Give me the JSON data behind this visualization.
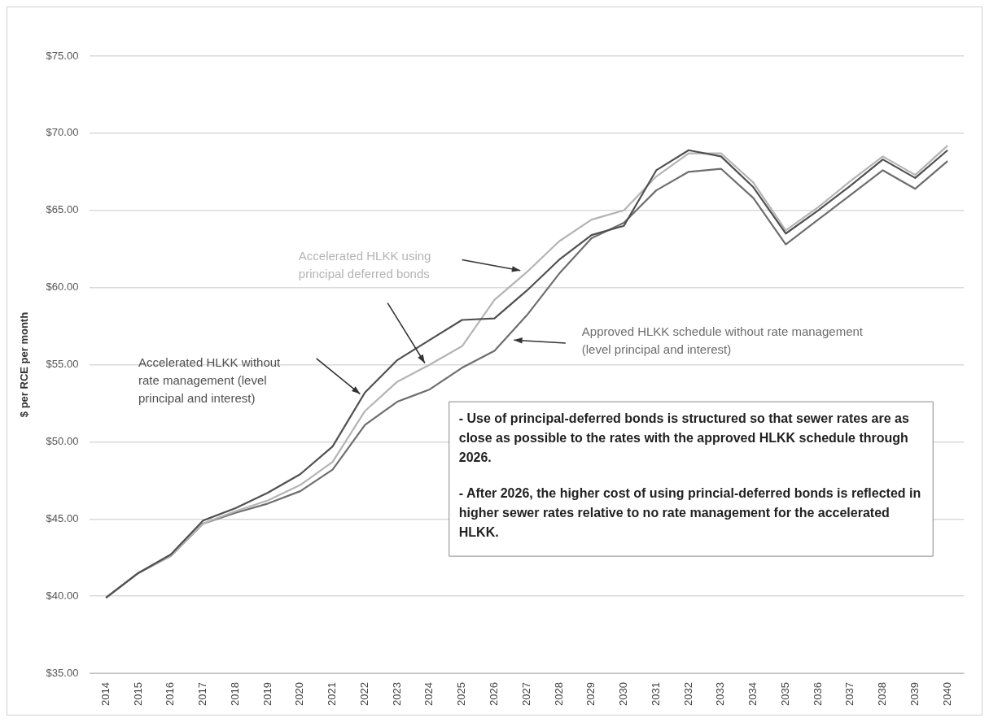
{
  "chart_data": {
    "type": "line",
    "ylabel": "$ per RCE per month",
    "categories": [
      "2014",
      "2015",
      "2016",
      "2017",
      "2018",
      "2019",
      "2020",
      "2021",
      "2022",
      "2023",
      "2024",
      "2025",
      "2026",
      "2027",
      "2028",
      "2029",
      "2030",
      "2031",
      "2032",
      "2033",
      "2034",
      "2035",
      "2036",
      "2037",
      "2038",
      "2039",
      "2040"
    ],
    "series": [
      {
        "name": "Accelerated HLKK without rate management (level principal and interest)",
        "color": "#505050",
        "values": [
          39.9,
          41.5,
          42.7,
          44.9,
          45.7,
          46.7,
          47.9,
          49.7,
          53.2,
          55.3,
          56.6,
          57.9,
          58.0,
          59.8,
          61.8,
          63.4,
          64.0,
          67.6,
          68.9,
          68.5,
          66.5,
          63.5,
          65.0,
          66.6,
          68.3,
          67.1,
          68.9
        ]
      },
      {
        "name": "Accelerated HLKK using principal deferred bonds",
        "color": "#b4b4b4",
        "values": [
          39.9,
          41.5,
          42.6,
          44.7,
          45.5,
          46.2,
          47.2,
          48.7,
          52.0,
          53.9,
          55.0,
          56.2,
          59.2,
          61.0,
          63.0,
          64.4,
          65.0,
          67.2,
          68.7,
          68.7,
          66.8,
          63.7,
          65.2,
          66.9,
          68.5,
          67.3,
          69.2
        ]
      },
      {
        "name": "Approved HLKK schedule without rate management (level principal and interest)",
        "color": "#6e6e6e",
        "values": [
          39.9,
          41.5,
          42.6,
          44.7,
          45.4,
          46.0,
          46.8,
          48.2,
          51.1,
          52.6,
          53.4,
          54.8,
          55.9,
          58.2,
          60.9,
          63.2,
          64.2,
          66.3,
          67.5,
          67.7,
          65.8,
          62.8,
          64.4,
          66.0,
          67.6,
          66.4,
          68.2
        ]
      }
    ],
    "ylim": [
      35,
      75
    ],
    "yticks": [
      {
        "value": 35,
        "label": "$35.00"
      },
      {
        "value": 40,
        "label": "$40.00"
      },
      {
        "value": 45,
        "label": "$45.00"
      },
      {
        "value": 50,
        "label": "$50.00"
      },
      {
        "value": 55,
        "label": "$55.00"
      },
      {
        "value": 60,
        "label": "$60.00"
      },
      {
        "value": 65,
        "label": "$65.00"
      },
      {
        "value": 70,
        "label": "$70.00"
      },
      {
        "value": 75,
        "label": "$75.00"
      }
    ],
    "grid": "y",
    "legend": false,
    "marker": "none",
    "line_style": "solid",
    "annotations": [
      "- Use of principal-deferred bonds is structured so that sewer rates are as close as possible to the rates with the approved HLKK schedule through 2026.",
      "- After 2026, the higher cost of using princial-deferred bonds is reflected in higher sewer rates relative to no rate management for the accelerated HLKK."
    ]
  }
}
